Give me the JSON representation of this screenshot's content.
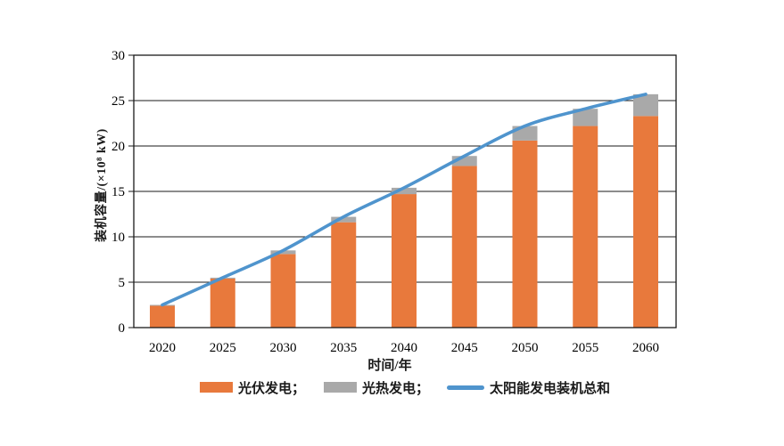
{
  "chart_data": {
    "type": "bar",
    "stacked": true,
    "title": "",
    "xlabel": "时间/年",
    "ylabel": "装机容量/(×10⁸ kW)",
    "categories": [
      "2020",
      "2025",
      "2030",
      "2035",
      "2040",
      "2045",
      "2050",
      "2055",
      "2060"
    ],
    "series": [
      {
        "name": "光伏发电",
        "type": "bar",
        "color": "#E8793C",
        "values": [
          2.4,
          5.4,
          8.1,
          11.6,
          14.7,
          17.8,
          20.6,
          22.2,
          23.3
        ]
      },
      {
        "name": "光热发电",
        "type": "bar",
        "color": "#A9A9A9",
        "values": [
          0.1,
          0.1,
          0.4,
          0.6,
          0.7,
          1.1,
          1.6,
          1.9,
          2.4
        ]
      },
      {
        "name": "太阳能发电装机总和",
        "type": "line",
        "color": "#4F94CD",
        "values": [
          2.5,
          5.5,
          8.5,
          12.2,
          15.4,
          18.9,
          22.2,
          24.1,
          25.7
        ]
      }
    ],
    "ylim": [
      0,
      30
    ],
    "yticks": [
      0,
      5,
      10,
      15,
      20,
      25,
      30
    ],
    "grid": "horizontal",
    "axis_color": "#1a1a1a",
    "legend_position": "bottom",
    "legend": {
      "items": [
        {
          "label": "光伏发电；",
          "swatch": "rect",
          "color": "#E8793C"
        },
        {
          "label": "光热发电；",
          "swatch": "rect",
          "color": "#A9A9A9"
        },
        {
          "label": "太阳能发电装机总和",
          "swatch": "line",
          "color": "#4F94CD"
        }
      ]
    }
  }
}
